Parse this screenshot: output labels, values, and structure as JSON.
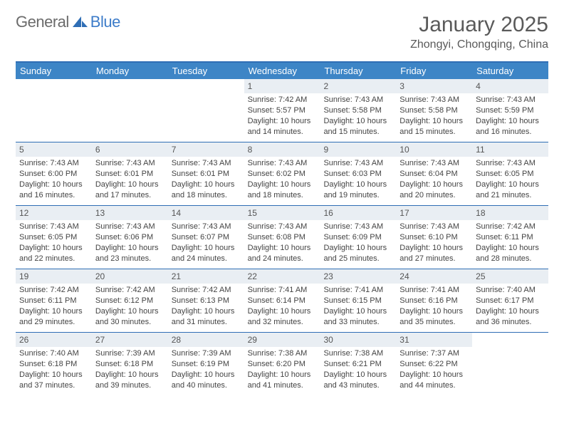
{
  "brand": {
    "text1": "General",
    "text2": "Blue"
  },
  "title": "January 2025",
  "location": "Zhongyi, Chongqing, China",
  "colors": {
    "header_bg": "#3d85c6",
    "border": "#2f6eb5",
    "date_bg": "#e9eef3",
    "text": "#444444",
    "title_text": "#5a5a5a"
  },
  "dayNames": [
    "Sunday",
    "Monday",
    "Tuesday",
    "Wednesday",
    "Thursday",
    "Friday",
    "Saturday"
  ],
  "weeks": [
    [
      null,
      null,
      null,
      {
        "d": "1",
        "sr": "7:42 AM",
        "ss": "5:57 PM",
        "dl": "10 hours and 14 minutes."
      },
      {
        "d": "2",
        "sr": "7:43 AM",
        "ss": "5:58 PM",
        "dl": "10 hours and 15 minutes."
      },
      {
        "d": "3",
        "sr": "7:43 AM",
        "ss": "5:58 PM",
        "dl": "10 hours and 15 minutes."
      },
      {
        "d": "4",
        "sr": "7:43 AM",
        "ss": "5:59 PM",
        "dl": "10 hours and 16 minutes."
      }
    ],
    [
      {
        "d": "5",
        "sr": "7:43 AM",
        "ss": "6:00 PM",
        "dl": "10 hours and 16 minutes."
      },
      {
        "d": "6",
        "sr": "7:43 AM",
        "ss": "6:01 PM",
        "dl": "10 hours and 17 minutes."
      },
      {
        "d": "7",
        "sr": "7:43 AM",
        "ss": "6:01 PM",
        "dl": "10 hours and 18 minutes."
      },
      {
        "d": "8",
        "sr": "7:43 AM",
        "ss": "6:02 PM",
        "dl": "10 hours and 18 minutes."
      },
      {
        "d": "9",
        "sr": "7:43 AM",
        "ss": "6:03 PM",
        "dl": "10 hours and 19 minutes."
      },
      {
        "d": "10",
        "sr": "7:43 AM",
        "ss": "6:04 PM",
        "dl": "10 hours and 20 minutes."
      },
      {
        "d": "11",
        "sr": "7:43 AM",
        "ss": "6:05 PM",
        "dl": "10 hours and 21 minutes."
      }
    ],
    [
      {
        "d": "12",
        "sr": "7:43 AM",
        "ss": "6:05 PM",
        "dl": "10 hours and 22 minutes."
      },
      {
        "d": "13",
        "sr": "7:43 AM",
        "ss": "6:06 PM",
        "dl": "10 hours and 23 minutes."
      },
      {
        "d": "14",
        "sr": "7:43 AM",
        "ss": "6:07 PM",
        "dl": "10 hours and 24 minutes."
      },
      {
        "d": "15",
        "sr": "7:43 AM",
        "ss": "6:08 PM",
        "dl": "10 hours and 24 minutes."
      },
      {
        "d": "16",
        "sr": "7:43 AM",
        "ss": "6:09 PM",
        "dl": "10 hours and 25 minutes."
      },
      {
        "d": "17",
        "sr": "7:43 AM",
        "ss": "6:10 PM",
        "dl": "10 hours and 27 minutes."
      },
      {
        "d": "18",
        "sr": "7:42 AM",
        "ss": "6:11 PM",
        "dl": "10 hours and 28 minutes."
      }
    ],
    [
      {
        "d": "19",
        "sr": "7:42 AM",
        "ss": "6:11 PM",
        "dl": "10 hours and 29 minutes."
      },
      {
        "d": "20",
        "sr": "7:42 AM",
        "ss": "6:12 PM",
        "dl": "10 hours and 30 minutes."
      },
      {
        "d": "21",
        "sr": "7:42 AM",
        "ss": "6:13 PM",
        "dl": "10 hours and 31 minutes."
      },
      {
        "d": "22",
        "sr": "7:41 AM",
        "ss": "6:14 PM",
        "dl": "10 hours and 32 minutes."
      },
      {
        "d": "23",
        "sr": "7:41 AM",
        "ss": "6:15 PM",
        "dl": "10 hours and 33 minutes."
      },
      {
        "d": "24",
        "sr": "7:41 AM",
        "ss": "6:16 PM",
        "dl": "10 hours and 35 minutes."
      },
      {
        "d": "25",
        "sr": "7:40 AM",
        "ss": "6:17 PM",
        "dl": "10 hours and 36 minutes."
      }
    ],
    [
      {
        "d": "26",
        "sr": "7:40 AM",
        "ss": "6:18 PM",
        "dl": "10 hours and 37 minutes."
      },
      {
        "d": "27",
        "sr": "7:39 AM",
        "ss": "6:18 PM",
        "dl": "10 hours and 39 minutes."
      },
      {
        "d": "28",
        "sr": "7:39 AM",
        "ss": "6:19 PM",
        "dl": "10 hours and 40 minutes."
      },
      {
        "d": "29",
        "sr": "7:38 AM",
        "ss": "6:20 PM",
        "dl": "10 hours and 41 minutes."
      },
      {
        "d": "30",
        "sr": "7:38 AM",
        "ss": "6:21 PM",
        "dl": "10 hours and 43 minutes."
      },
      {
        "d": "31",
        "sr": "7:37 AM",
        "ss": "6:22 PM",
        "dl": "10 hours and 44 minutes."
      },
      null
    ]
  ],
  "labels": {
    "sunrise": "Sunrise:",
    "sunset": "Sunset:",
    "daylight": "Daylight:"
  }
}
